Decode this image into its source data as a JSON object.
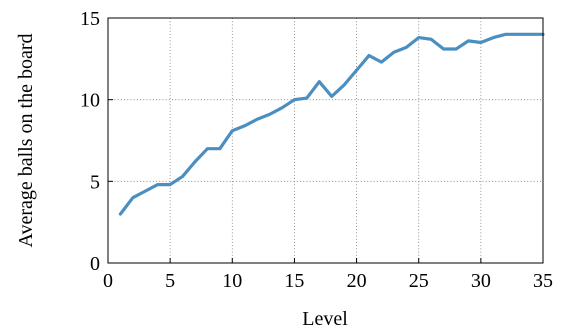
{
  "chart_data": {
    "type": "line",
    "title": "",
    "xlabel": "Level",
    "ylabel": "Average balls on the board",
    "xlim": [
      0,
      35
    ],
    "ylim": [
      0,
      15
    ],
    "xticks": [
      0,
      5,
      10,
      15,
      20,
      25,
      30,
      35
    ],
    "yticks": [
      0,
      5,
      10,
      15
    ],
    "grid": true,
    "series": [
      {
        "color": "#4a8fc0",
        "x": [
          1,
          2,
          3,
          4,
          5,
          6,
          7,
          8,
          9,
          10,
          11,
          12,
          13,
          14,
          15,
          16,
          17,
          18,
          19,
          20,
          21,
          22,
          23,
          24,
          25,
          26,
          27,
          28,
          29,
          30,
          31,
          32,
          33,
          34,
          35
        ],
        "y": [
          3.0,
          4.0,
          4.4,
          4.8,
          4.8,
          5.3,
          6.2,
          7.0,
          7.0,
          8.1,
          8.4,
          8.8,
          9.1,
          9.5,
          10.0,
          10.1,
          11.1,
          10.2,
          10.9,
          11.8,
          12.7,
          12.3,
          12.9,
          13.2,
          13.8,
          13.7,
          13.1,
          13.1,
          13.6,
          13.5,
          13.8,
          14.0,
          14.0,
          14.0,
          14.0
        ]
      }
    ]
  }
}
